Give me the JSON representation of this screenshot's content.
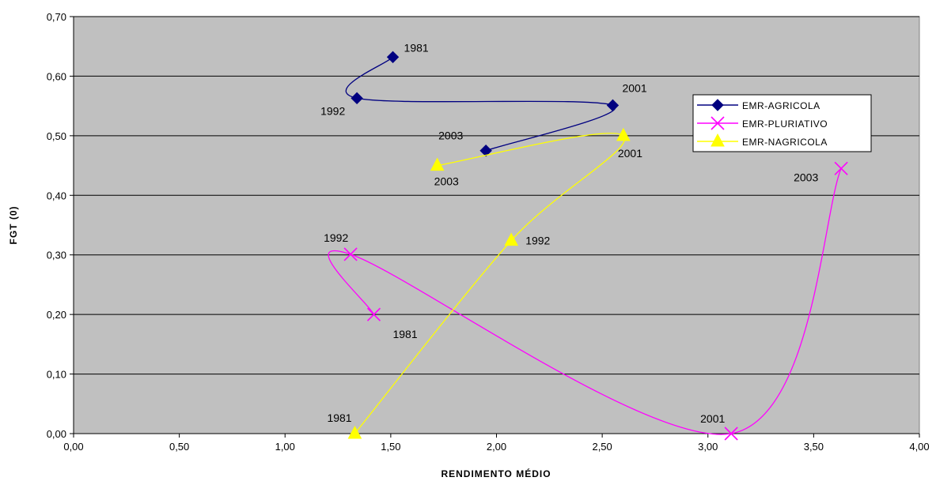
{
  "chart_data": {
    "type": "scatter",
    "title": "",
    "xlabel": "RENDIMENTO MÉDIO",
    "ylabel": "FGT (0)",
    "xlim": [
      0,
      4
    ],
    "ylim": [
      0,
      0.7
    ],
    "x_ticks": [
      "0,00",
      "0,50",
      "1,00",
      "1,50",
      "2,00",
      "2,50",
      "3,00",
      "3,50",
      "4,00"
    ],
    "y_ticks": [
      "0,00",
      "0,10",
      "0,20",
      "0,30",
      "0,40",
      "0,50",
      "0,60",
      "0,70"
    ],
    "grid": "horizontal",
    "plot_background": "#c0c0c0",
    "legend_position": "top-right",
    "series": [
      {
        "name": "EMR-AGRICOLA",
        "color": "#000080",
        "marker": "diamond",
        "points": [
          {
            "x": 1.51,
            "y": 0.632,
            "label": "1981"
          },
          {
            "x": 1.34,
            "y": 0.563,
            "label": "1992"
          },
          {
            "x": 2.55,
            "y": 0.551,
            "label": "2001"
          },
          {
            "x": 1.95,
            "y": 0.475,
            "label": "2003"
          }
        ]
      },
      {
        "name": "EMR-PLURIATIVO",
        "color": "#ff00ff",
        "marker": "x",
        "points": [
          {
            "x": 1.42,
            "y": 0.2,
            "label": "1981"
          },
          {
            "x": 1.31,
            "y": 0.301,
            "label": "1992"
          },
          {
            "x": 3.11,
            "y": 0.0,
            "label": "2001"
          },
          {
            "x": 3.63,
            "y": 0.445,
            "label": "2003"
          }
        ]
      },
      {
        "name": "EMR-NAGRICOLA",
        "color": "#ffff00",
        "marker": "triangle",
        "points": [
          {
            "x": 1.33,
            "y": 0.0,
            "label": "1981"
          },
          {
            "x": 2.07,
            "y": 0.324,
            "label": "1992"
          },
          {
            "x": 2.6,
            "y": 0.5,
            "label": "2001"
          },
          {
            "x": 1.72,
            "y": 0.45,
            "label": "2003"
          }
        ]
      }
    ]
  }
}
